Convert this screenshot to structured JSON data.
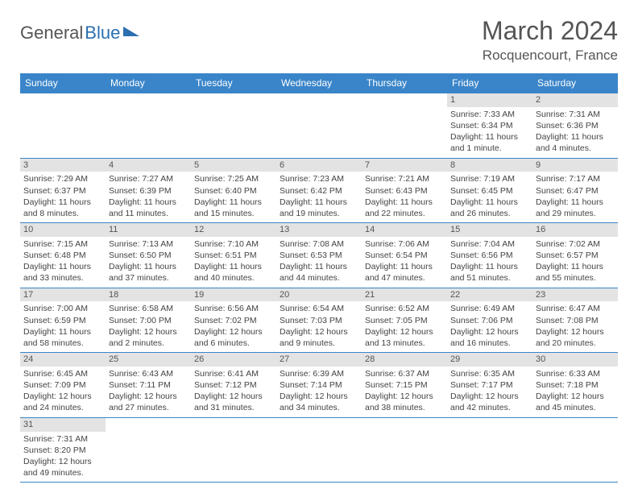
{
  "logo": {
    "text1": "General",
    "text2": "Blue"
  },
  "title": "March 2024",
  "location": "Rocquencourt, France",
  "style": {
    "header_bg": "#3a85c9",
    "header_fg": "#ffffff",
    "daynum_bg": "#e3e3e3",
    "border_color": "#3a85c9",
    "body_text": "#444444",
    "month_title_fontsize": 32,
    "location_fontsize": 17,
    "th_fontsize": 12,
    "cell_fontsize": 10.5
  },
  "day_headers": [
    "Sunday",
    "Monday",
    "Tuesday",
    "Wednesday",
    "Thursday",
    "Friday",
    "Saturday"
  ],
  "weeks": [
    [
      {
        "n": "",
        "sr": "",
        "ss": "",
        "d1": "",
        "d2": ""
      },
      {
        "n": "",
        "sr": "",
        "ss": "",
        "d1": "",
        "d2": ""
      },
      {
        "n": "",
        "sr": "",
        "ss": "",
        "d1": "",
        "d2": ""
      },
      {
        "n": "",
        "sr": "",
        "ss": "",
        "d1": "",
        "d2": ""
      },
      {
        "n": "",
        "sr": "",
        "ss": "",
        "d1": "",
        "d2": ""
      },
      {
        "n": "1",
        "sr": "Sunrise: 7:33 AM",
        "ss": "Sunset: 6:34 PM",
        "d1": "Daylight: 11 hours",
        "d2": "and 1 minute."
      },
      {
        "n": "2",
        "sr": "Sunrise: 7:31 AM",
        "ss": "Sunset: 6:36 PM",
        "d1": "Daylight: 11 hours",
        "d2": "and 4 minutes."
      }
    ],
    [
      {
        "n": "3",
        "sr": "Sunrise: 7:29 AM",
        "ss": "Sunset: 6:37 PM",
        "d1": "Daylight: 11 hours",
        "d2": "and 8 minutes."
      },
      {
        "n": "4",
        "sr": "Sunrise: 7:27 AM",
        "ss": "Sunset: 6:39 PM",
        "d1": "Daylight: 11 hours",
        "d2": "and 11 minutes."
      },
      {
        "n": "5",
        "sr": "Sunrise: 7:25 AM",
        "ss": "Sunset: 6:40 PM",
        "d1": "Daylight: 11 hours",
        "d2": "and 15 minutes."
      },
      {
        "n": "6",
        "sr": "Sunrise: 7:23 AM",
        "ss": "Sunset: 6:42 PM",
        "d1": "Daylight: 11 hours",
        "d2": "and 19 minutes."
      },
      {
        "n": "7",
        "sr": "Sunrise: 7:21 AM",
        "ss": "Sunset: 6:43 PM",
        "d1": "Daylight: 11 hours",
        "d2": "and 22 minutes."
      },
      {
        "n": "8",
        "sr": "Sunrise: 7:19 AM",
        "ss": "Sunset: 6:45 PM",
        "d1": "Daylight: 11 hours",
        "d2": "and 26 minutes."
      },
      {
        "n": "9",
        "sr": "Sunrise: 7:17 AM",
        "ss": "Sunset: 6:47 PM",
        "d1": "Daylight: 11 hours",
        "d2": "and 29 minutes."
      }
    ],
    [
      {
        "n": "10",
        "sr": "Sunrise: 7:15 AM",
        "ss": "Sunset: 6:48 PM",
        "d1": "Daylight: 11 hours",
        "d2": "and 33 minutes."
      },
      {
        "n": "11",
        "sr": "Sunrise: 7:13 AM",
        "ss": "Sunset: 6:50 PM",
        "d1": "Daylight: 11 hours",
        "d2": "and 37 minutes."
      },
      {
        "n": "12",
        "sr": "Sunrise: 7:10 AM",
        "ss": "Sunset: 6:51 PM",
        "d1": "Daylight: 11 hours",
        "d2": "and 40 minutes."
      },
      {
        "n": "13",
        "sr": "Sunrise: 7:08 AM",
        "ss": "Sunset: 6:53 PM",
        "d1": "Daylight: 11 hours",
        "d2": "and 44 minutes."
      },
      {
        "n": "14",
        "sr": "Sunrise: 7:06 AM",
        "ss": "Sunset: 6:54 PM",
        "d1": "Daylight: 11 hours",
        "d2": "and 47 minutes."
      },
      {
        "n": "15",
        "sr": "Sunrise: 7:04 AM",
        "ss": "Sunset: 6:56 PM",
        "d1": "Daylight: 11 hours",
        "d2": "and 51 minutes."
      },
      {
        "n": "16",
        "sr": "Sunrise: 7:02 AM",
        "ss": "Sunset: 6:57 PM",
        "d1": "Daylight: 11 hours",
        "d2": "and 55 minutes."
      }
    ],
    [
      {
        "n": "17",
        "sr": "Sunrise: 7:00 AM",
        "ss": "Sunset: 6:59 PM",
        "d1": "Daylight: 11 hours",
        "d2": "and 58 minutes."
      },
      {
        "n": "18",
        "sr": "Sunrise: 6:58 AM",
        "ss": "Sunset: 7:00 PM",
        "d1": "Daylight: 12 hours",
        "d2": "and 2 minutes."
      },
      {
        "n": "19",
        "sr": "Sunrise: 6:56 AM",
        "ss": "Sunset: 7:02 PM",
        "d1": "Daylight: 12 hours",
        "d2": "and 6 minutes."
      },
      {
        "n": "20",
        "sr": "Sunrise: 6:54 AM",
        "ss": "Sunset: 7:03 PM",
        "d1": "Daylight: 12 hours",
        "d2": "and 9 minutes."
      },
      {
        "n": "21",
        "sr": "Sunrise: 6:52 AM",
        "ss": "Sunset: 7:05 PM",
        "d1": "Daylight: 12 hours",
        "d2": "and 13 minutes."
      },
      {
        "n": "22",
        "sr": "Sunrise: 6:49 AM",
        "ss": "Sunset: 7:06 PM",
        "d1": "Daylight: 12 hours",
        "d2": "and 16 minutes."
      },
      {
        "n": "23",
        "sr": "Sunrise: 6:47 AM",
        "ss": "Sunset: 7:08 PM",
        "d1": "Daylight: 12 hours",
        "d2": "and 20 minutes."
      }
    ],
    [
      {
        "n": "24",
        "sr": "Sunrise: 6:45 AM",
        "ss": "Sunset: 7:09 PM",
        "d1": "Daylight: 12 hours",
        "d2": "and 24 minutes."
      },
      {
        "n": "25",
        "sr": "Sunrise: 6:43 AM",
        "ss": "Sunset: 7:11 PM",
        "d1": "Daylight: 12 hours",
        "d2": "and 27 minutes."
      },
      {
        "n": "26",
        "sr": "Sunrise: 6:41 AM",
        "ss": "Sunset: 7:12 PM",
        "d1": "Daylight: 12 hours",
        "d2": "and 31 minutes."
      },
      {
        "n": "27",
        "sr": "Sunrise: 6:39 AM",
        "ss": "Sunset: 7:14 PM",
        "d1": "Daylight: 12 hours",
        "d2": "and 34 minutes."
      },
      {
        "n": "28",
        "sr": "Sunrise: 6:37 AM",
        "ss": "Sunset: 7:15 PM",
        "d1": "Daylight: 12 hours",
        "d2": "and 38 minutes."
      },
      {
        "n": "29",
        "sr": "Sunrise: 6:35 AM",
        "ss": "Sunset: 7:17 PM",
        "d1": "Daylight: 12 hours",
        "d2": "and 42 minutes."
      },
      {
        "n": "30",
        "sr": "Sunrise: 6:33 AM",
        "ss": "Sunset: 7:18 PM",
        "d1": "Daylight: 12 hours",
        "d2": "and 45 minutes."
      }
    ],
    [
      {
        "n": "31",
        "sr": "Sunrise: 7:31 AM",
        "ss": "Sunset: 8:20 PM",
        "d1": "Daylight: 12 hours",
        "d2": "and 49 minutes."
      },
      {
        "n": "",
        "sr": "",
        "ss": "",
        "d1": "",
        "d2": ""
      },
      {
        "n": "",
        "sr": "",
        "ss": "",
        "d1": "",
        "d2": ""
      },
      {
        "n": "",
        "sr": "",
        "ss": "",
        "d1": "",
        "d2": ""
      },
      {
        "n": "",
        "sr": "",
        "ss": "",
        "d1": "",
        "d2": ""
      },
      {
        "n": "",
        "sr": "",
        "ss": "",
        "d1": "",
        "d2": ""
      },
      {
        "n": "",
        "sr": "",
        "ss": "",
        "d1": "",
        "d2": ""
      }
    ]
  ]
}
